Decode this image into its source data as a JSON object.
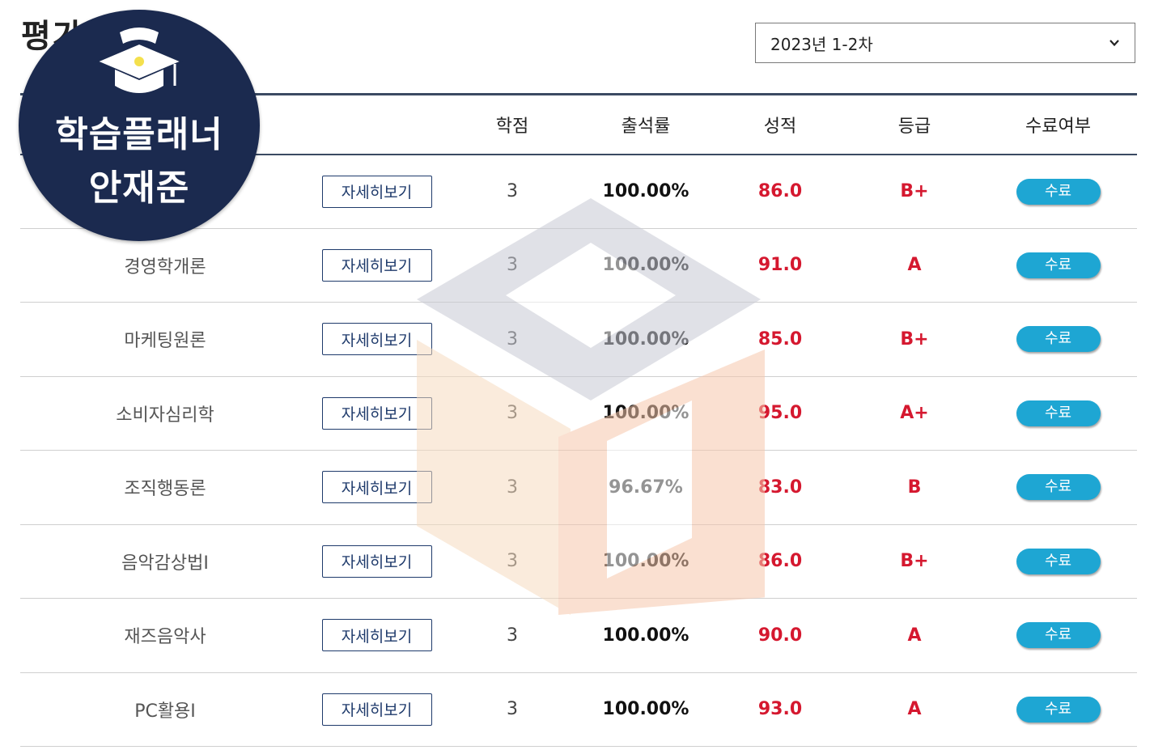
{
  "page": {
    "title": "평가"
  },
  "term_select": {
    "value": "2023년 1-2차",
    "icon": "chevron-down-icon"
  },
  "table": {
    "headers": {
      "credit": "학점",
      "attendance": "출석률",
      "score": "성적",
      "grade": "등급",
      "completion": "수료여부"
    },
    "detail_label": "자세히보기",
    "rows": [
      {
        "course": "",
        "credit": "3",
        "attendance": "100.00%",
        "score": "86.0",
        "grade": "B+",
        "completion": "수료"
      },
      {
        "course": "경영학개론",
        "credit": "3",
        "attendance": "100.00%",
        "score": "91.0",
        "grade": "A",
        "completion": "수료"
      },
      {
        "course": "마케팅원론",
        "credit": "3",
        "attendance": "100.00%",
        "score": "85.0",
        "grade": "B+",
        "completion": "수료"
      },
      {
        "course": "소비자심리학",
        "credit": "3",
        "attendance": "100.00%",
        "score": "95.0",
        "grade": "A+",
        "completion": "수료"
      },
      {
        "course": "조직행동론",
        "credit": "3",
        "attendance": "96.67%",
        "score": "83.0",
        "grade": "B",
        "completion": "수료"
      },
      {
        "course": "음악감상법I",
        "credit": "3",
        "attendance": "100.00%",
        "score": "86.0",
        "grade": "B+",
        "completion": "수료"
      },
      {
        "course": "재즈음악사",
        "credit": "3",
        "attendance": "100.00%",
        "score": "90.0",
        "grade": "A",
        "completion": "수료"
      },
      {
        "course": "PC활용I",
        "credit": "3",
        "attendance": "100.00%",
        "score": "93.0",
        "grade": "A",
        "completion": "수료"
      }
    ]
  },
  "badge": {
    "line1": "학습플래너",
    "line2": "안재준",
    "icon": "graduation-cap-icon"
  },
  "colors": {
    "accent_red": "#d5182f",
    "badge_navy": "#1b2a4f",
    "status_blue": "#1ea6d3",
    "header_rule": "#3b4a62"
  }
}
